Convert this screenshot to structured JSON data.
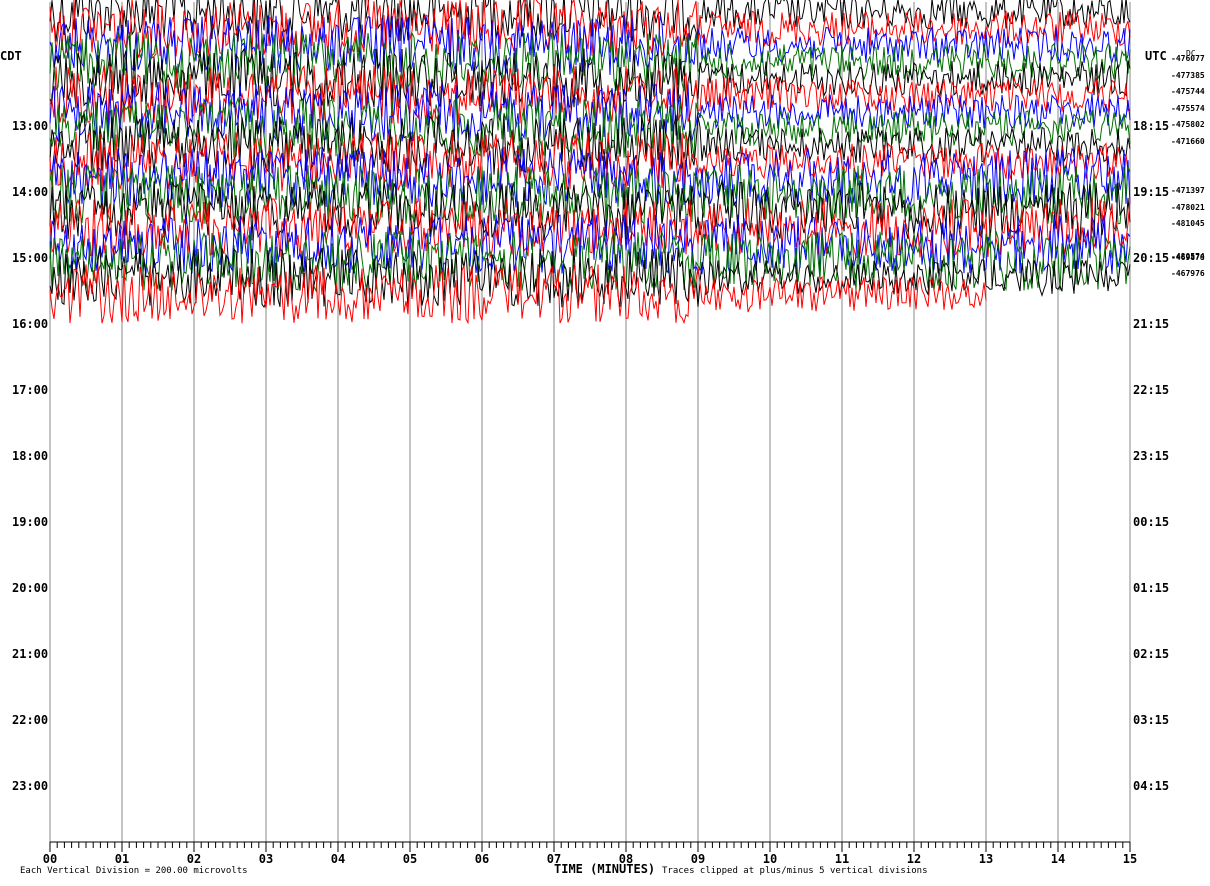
{
  "chart_data": {
    "type": "line",
    "subtype": "helicorder",
    "header_lines": [
      "",
      "",
      ""
    ],
    "left_axis_title": "CDT",
    "right_axis_title": "UTC",
    "dc_title": "DC",
    "left_time_labels": [
      "13:00",
      "14:00",
      "15:00",
      "16:00",
      "17:00",
      "18:00",
      "19:00",
      "20:00",
      "21:00",
      "22:00",
      "23:00"
    ],
    "right_time_labels": [
      "18:15",
      "19:15",
      "20:15",
      "21:15",
      "22:15",
      "23:15",
      "00:15",
      "01:15",
      "02:15",
      "03:15",
      "04:15"
    ],
    "x_tick_labels": [
      "00",
      "01",
      "02",
      "03",
      "04",
      "05",
      "06",
      "07",
      "08",
      "09",
      "10",
      "11",
      "12",
      "13",
      "14",
      "15"
    ],
    "xlabel": "TIME (MINUTES)",
    "xlim": [
      0,
      15
    ],
    "footer_left": "Each Vertical Division =  200.00 microvolts",
    "footer_right": "Traces clipped at plus/minus 5 vertical divisions",
    "dc_offsets": [
      "-476077",
      "-477385",
      "-475744",
      "-475574",
      "-475802",
      "-471660",
      "-471397",
      "-478021",
      "-481045",
      "-480574",
      "-469878",
      "-467976"
    ],
    "trace_colors": [
      "#000000",
      "#ff0000",
      "#0000ff",
      "#007000"
    ],
    "traces_recorded_until_minute": [
      15,
      15,
      15,
      15,
      15,
      15,
      15,
      15,
      15,
      15,
      15,
      15,
      15,
      15,
      15,
      15,
      15,
      13
    ],
    "clip_divisions": 5
  }
}
